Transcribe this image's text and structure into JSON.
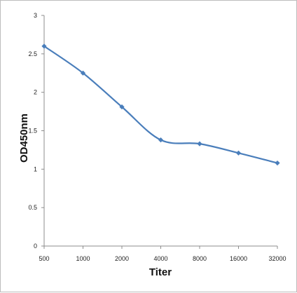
{
  "chart_data": {
    "type": "line",
    "title": "",
    "xlabel": "Titer",
    "ylabel": "OD450nm",
    "categories": [
      "500",
      "1000",
      "2000",
      "4000",
      "8000",
      "16000",
      "32000"
    ],
    "series": [
      {
        "values": [
          2.6,
          2.25,
          1.81,
          1.38,
          1.33,
          1.21,
          1.08
        ]
      }
    ],
    "ylim": [
      0,
      3
    ],
    "yticks": [
      "0",
      "0.5",
      "1",
      "1.5",
      "2",
      "2.5",
      "3"
    ],
    "grid": false,
    "legend": "none",
    "line_color": "#4a7ebb",
    "marker": "diamond"
  }
}
